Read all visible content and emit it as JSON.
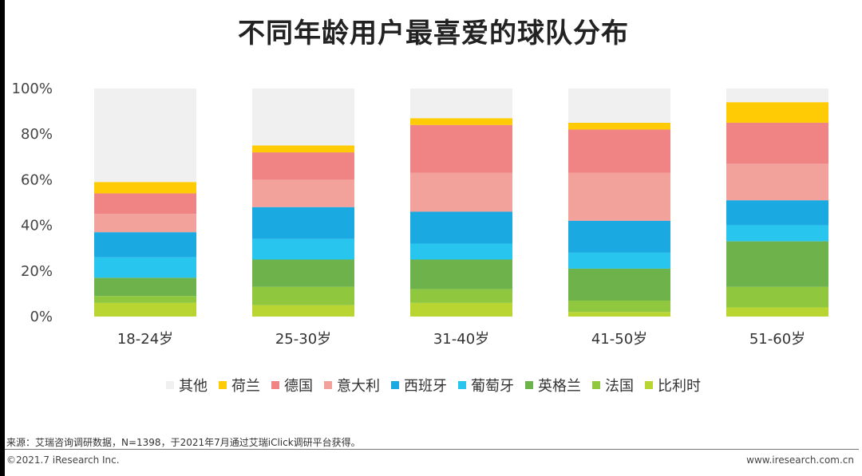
{
  "title": "不同年龄用户最喜爱的球队分布",
  "source": "来源：艾瑞咨询调研数据，N=1398，于2021年7月通过艾瑞iClick调研平台获得。",
  "copyright": "©2021.7 iResearch Inc.",
  "website": "www.iresearch.com.cn",
  "chart_data": {
    "type": "bar",
    "stacked": true,
    "title": "不同年龄用户最喜爱的球队分布",
    "categories": [
      "18-24岁",
      "25-30岁",
      "31-40岁",
      "41-50岁",
      "51-60岁"
    ],
    "ylim": [
      0,
      100
    ],
    "yticks": [
      0,
      20,
      40,
      60,
      80,
      100
    ],
    "ytick_labels": [
      "0%",
      "20%",
      "40%",
      "60%",
      "80%",
      "100%"
    ],
    "legend_position": "bottom",
    "series": [
      {
        "name": "比利时",
        "color": "#b9d531",
        "values": [
          6,
          5,
          6,
          2,
          4
        ]
      },
      {
        "name": "法国",
        "color": "#8fc73e",
        "values": [
          3,
          8,
          6,
          5,
          9
        ]
      },
      {
        "name": "英格兰",
        "color": "#6db24a",
        "values": [
          8,
          12,
          13,
          14,
          20
        ]
      },
      {
        "name": "葡萄牙",
        "color": "#28c6ee",
        "values": [
          9,
          9,
          7,
          7,
          7
        ]
      },
      {
        "name": "西班牙",
        "color": "#1ba9e1",
        "values": [
          11,
          14,
          14,
          14,
          11
        ]
      },
      {
        "name": "意大利",
        "color": "#f3a19b",
        "values": [
          8,
          12,
          17,
          21,
          16
        ]
      },
      {
        "name": "德国",
        "color": "#f08383",
        "values": [
          9,
          12,
          21,
          19,
          18
        ]
      },
      {
        "name": "荷兰",
        "color": "#fecb05",
        "values": [
          5,
          3,
          3,
          3,
          9
        ]
      },
      {
        "name": "其他",
        "color": "#f0f0f0",
        "values": [
          41,
          25,
          13,
          15,
          6
        ]
      }
    ],
    "legend_order": [
      "其他",
      "荷兰",
      "德国",
      "意大利",
      "西班牙",
      "葡萄牙",
      "英格兰",
      "法国",
      "比利时"
    ]
  }
}
